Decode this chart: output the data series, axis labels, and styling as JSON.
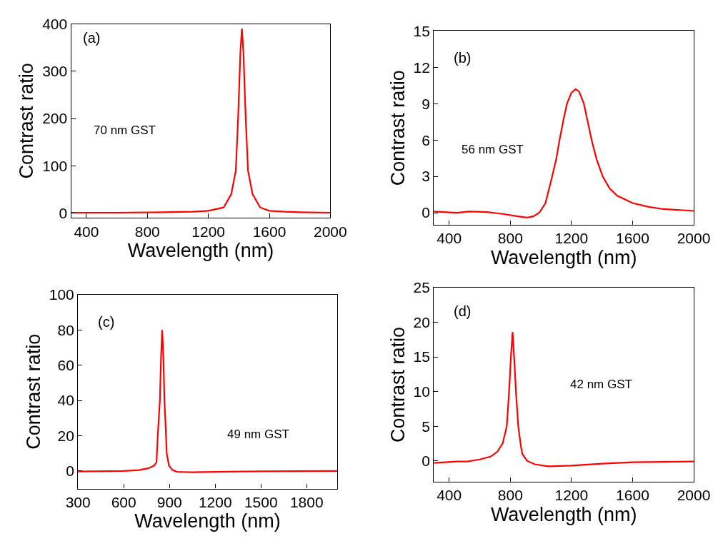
{
  "chart_data": [
    {
      "type": "line",
      "xlabel": "Wavelength (nm)",
      "ylabel": "Contrast ratio",
      "annotations": [
        "(a)",
        "70 nm GST"
      ],
      "xlim": [
        300,
        2000
      ],
      "ylim": [
        -10,
        400
      ],
      "xticks": [
        400,
        800,
        1200,
        1600,
        2000
      ],
      "yticks": [
        0,
        100,
        200,
        300,
        400
      ],
      "marker": "none",
      "line_style": "solid",
      "series": [
        {
          "color": "#ff0000",
          "x": [
            300,
            600,
            900,
            1100,
            1200,
            1300,
            1350,
            1380,
            1395,
            1410,
            1420,
            1430,
            1445,
            1460,
            1490,
            1540,
            1600,
            1700,
            1800,
            2000
          ],
          "values": [
            1,
            1,
            2,
            3,
            5,
            12,
            40,
            90,
            200,
            340,
            390,
            340,
            200,
            90,
            40,
            12,
            5,
            3,
            2,
            1
          ]
        }
      ]
    },
    {
      "type": "line",
      "xlabel": "Wavelength (nm)",
      "ylabel": "Contrast ratio",
      "annotations": [
        "(b)",
        "56 nm GST"
      ],
      "xlim": [
        300,
        2000
      ],
      "ylim": [
        -1,
        15
      ],
      "xticks": [
        400,
        800,
        1200,
        1600,
        2000
      ],
      "yticks": [
        0,
        3,
        6,
        9,
        12,
        15
      ],
      "marker": "none",
      "line_style": "solid",
      "series": [
        {
          "color": "#ff0000",
          "x": [
            300,
            450,
            530,
            650,
            750,
            850,
            910,
            950,
            990,
            1030,
            1074,
            1100,
            1122,
            1150,
            1171,
            1200,
            1227,
            1250,
            1281,
            1305,
            1332,
            1365,
            1404,
            1450,
            1500,
            1600,
            1700,
            1800,
            2000
          ],
          "values": [
            0.1,
            0,
            0.1,
            0.05,
            -0.1,
            -0.3,
            -0.4,
            -0.3,
            0,
            0.8,
            3,
            4.4,
            6,
            7.8,
            9,
            9.9,
            10.2,
            10,
            9,
            7.6,
            6,
            4.4,
            3,
            2,
            1.4,
            0.8,
            0.5,
            0.3,
            0.15
          ]
        }
      ]
    },
    {
      "type": "line",
      "xlabel": "Wavelength (nm)",
      "ylabel": "Contrast ratio",
      "annotations": [
        "(c)",
        "49 nm GST"
      ],
      "xlim": [
        300,
        2000
      ],
      "ylim": [
        -10,
        100
      ],
      "xticks": [
        300,
        600,
        900,
        1200,
        1500,
        1800
      ],
      "yticks": [
        0,
        20,
        40,
        60,
        80,
        100
      ],
      "marker": "none",
      "line_style": "solid",
      "series": [
        {
          "color": "#ff0000",
          "x": [
            300,
            600,
            700,
            760,
            800,
            815,
            823,
            837,
            845,
            852,
            860,
            867,
            875,
            882,
            897,
            920,
            950,
            1050,
            1200,
            1500,
            2000
          ],
          "values": [
            -0.3,
            0,
            0.5,
            1.5,
            3,
            5,
            20,
            40,
            65,
            80,
            65,
            40,
            25,
            10,
            3,
            0.5,
            -0.5,
            -0.7,
            -0.5,
            -0.2,
            0
          ]
        }
      ]
    },
    {
      "type": "line",
      "xlabel": "Wavelength (nm)",
      "ylabel": "Contrast ratio",
      "annotations": [
        "(d)",
        "42 nm GST"
      ],
      "xlim": [
        300,
        2000
      ],
      "ylim": [
        -3,
        25
      ],
      "xticks": [
        400,
        800,
        1200,
        1600,
        2000
      ],
      "yticks": [
        0,
        5,
        10,
        15,
        20,
        25
      ],
      "marker": "none",
      "line_style": "solid",
      "series": [
        {
          "color": "#ff0000",
          "x": [
            300,
            450,
            520,
            600,
            670,
            715,
            750,
            777,
            792,
            804,
            815,
            825,
            837,
            852,
            870,
            879,
            910,
            960,
            1050,
            1200,
            1400,
            1600,
            2000
          ],
          "values": [
            -0.3,
            -0.1,
            -0.1,
            0.2,
            0.6,
            1.3,
            2.5,
            5,
            10,
            15,
            18.6,
            15,
            10,
            5,
            2,
            1,
            0,
            -0.5,
            -0.8,
            -0.7,
            -0.4,
            -0.2,
            -0.1
          ]
        }
      ]
    }
  ]
}
